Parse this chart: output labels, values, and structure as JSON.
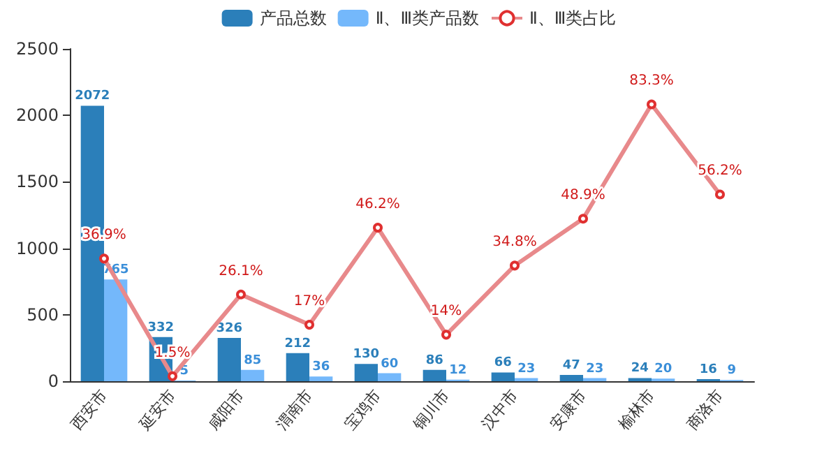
{
  "chart_data": {
    "type": "bar",
    "categories": [
      "西安市",
      "延安市",
      "咸阳市",
      "渭南市",
      "宝鸡市",
      "铜川市",
      "汉中市",
      "安康市",
      "榆林市",
      "商洛市"
    ],
    "series": [
      {
        "name": "产品总数",
        "color": "#2b7fba",
        "values": [
          2072,
          332,
          326,
          212,
          130,
          86,
          66,
          47,
          24,
          16
        ],
        "value_labels": [
          "2072",
          "332",
          "326",
          "212",
          "130",
          "86",
          "66",
          "47",
          "24",
          "16"
        ]
      },
      {
        "name": "Ⅱ、Ⅲ类产品数",
        "color": "#74b8fb",
        "values": [
          765,
          5,
          85,
          36,
          60,
          12,
          23,
          23,
          20,
          9
        ],
        "value_labels": [
          "765",
          "5",
          "85",
          "36",
          "60",
          "12",
          "23",
          "23",
          "20",
          "9"
        ]
      },
      {
        "name": "Ⅱ、Ⅲ类占比",
        "type": "line",
        "axis": "y2",
        "color": "#e8898b",
        "marker": "circle",
        "values": [
          36.9,
          1.5,
          26.1,
          17,
          46.2,
          14,
          34.8,
          48.9,
          83.3,
          56.2
        ],
        "value_labels": [
          "36.9%",
          "1.5%",
          "26.1%",
          "17%",
          "46.2%",
          "14%",
          "34.8%",
          "48.9%",
          "83.3%",
          "56.2%"
        ]
      }
    ],
    "ylim": [
      0,
      2500
    ],
    "yticks": [
      0,
      500,
      1000,
      1500,
      2000,
      2500
    ],
    "y2lim": [
      0,
      100
    ],
    "grid": false,
    "legend": "top"
  }
}
